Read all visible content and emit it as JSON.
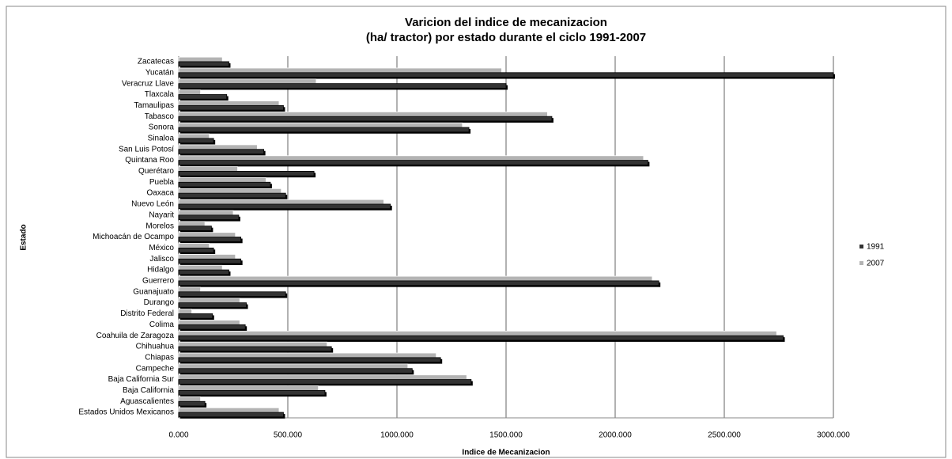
{
  "chart_data": {
    "type": "bar",
    "orientation": "horizontal",
    "title": "Varicion del indice de mecanizacion",
    "subtitle": "(ha/ tractor) por estado durante el ciclo 1991-2007",
    "x_label": "Indice de Mecanizacion",
    "y_label": "Estado",
    "categories": [
      "Zacatecas",
      "Yucatán",
      "Veracruz Llave",
      "Tlaxcala",
      "Tamaulipas",
      "Tabasco",
      "Sonora",
      "Sinaloa",
      "San Luis Potosí",
      "Quintana Roo",
      "Querétaro",
      "Puebla",
      "Oaxaca",
      "Nuevo León",
      "Nayarit",
      "Morelos",
      "Michoacán de Ocampo",
      "México",
      "Jalisco",
      "Hidalgo",
      "Guerrero",
      "Guanajuato",
      "Durango",
      "Distrito Federal",
      "Colima",
      "Coahuila de Zaragoza",
      "Chihuahua",
      "Chiapas",
      "Campeche",
      "Baja California Sur",
      "Baja California",
      "Aguascalientes",
      "Estados Unidos Mexicanos"
    ],
    "series": [
      {
        "name": "2007",
        "color": "#b3b3b3",
        "values": [
          200,
          1480,
          630,
          100,
          460,
          1690,
          1300,
          140,
          360,
          2130,
          270,
          400,
          470,
          940,
          250,
          120,
          260,
          140,
          260,
          200,
          2170,
          100,
          280,
          60,
          280,
          2740,
          680,
          1180,
          1050,
          1320,
          640,
          100,
          460
        ]
      },
      {
        "name": "1991",
        "color": "#333333",
        "values": [
          230,
          3000,
          1500,
          220,
          480,
          1710,
          1330,
          160,
          390,
          2150,
          620,
          420,
          490,
          970,
          275,
          150,
          285,
          160,
          285,
          230,
          2200,
          490,
          310,
          155,
          305,
          2770,
          700,
          1200,
          1070,
          1340,
          670,
          120,
          480
        ]
      }
    ],
    "xlim": [
      0,
      3000
    ],
    "xticks": [
      {
        "value": 0,
        "label": "0.000"
      },
      {
        "value": 500,
        "label": "500.000"
      },
      {
        "value": 1000,
        "label": "1000.000"
      },
      {
        "value": 1500,
        "label": "1500.000"
      },
      {
        "value": 2000,
        "label": "2000.000"
      },
      {
        "value": 2500,
        "label": "2500.000"
      },
      {
        "value": 3000,
        "label": "3000.000"
      }
    ],
    "grid": true,
    "legend": "right"
  }
}
